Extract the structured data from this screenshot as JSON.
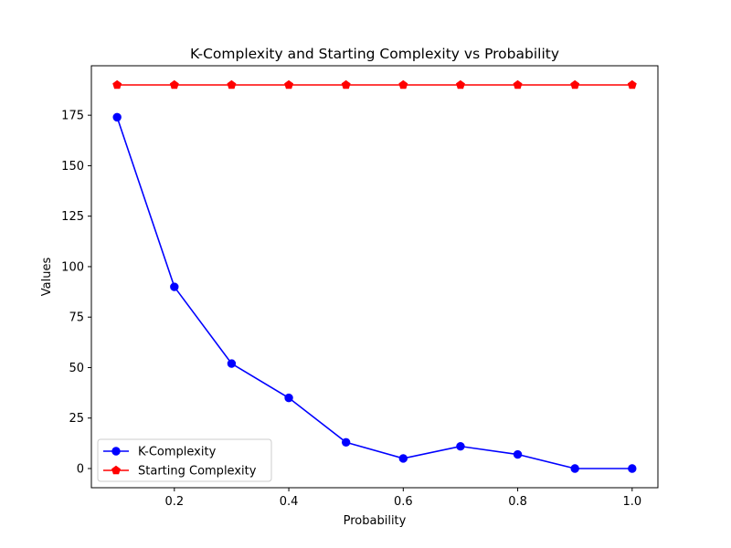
{
  "chart_data": {
    "type": "line",
    "title": "K-Complexity and Starting Complexity vs Probability",
    "xlabel": "Probability",
    "ylabel": "Values",
    "x": [
      0.1,
      0.2,
      0.3,
      0.4,
      0.5,
      0.6,
      0.7,
      0.8,
      0.9,
      1.0
    ],
    "xlim": [
      0.055,
      1.045
    ],
    "ylim": [
      -9.5,
      199.5
    ],
    "xticks": [
      0.2,
      0.4,
      0.6,
      0.8,
      1.0
    ],
    "xtick_labels": [
      "0.2",
      "0.4",
      "0.6",
      "0.8",
      "1.0"
    ],
    "yticks": [
      0,
      25,
      50,
      75,
      100,
      125,
      150,
      175
    ],
    "ytick_labels": [
      "0",
      "25",
      "50",
      "75",
      "100",
      "125",
      "150",
      "175"
    ],
    "grid": false,
    "legend_position": "lower-left",
    "series": [
      {
        "name": "K-Complexity",
        "color": "#0000ff",
        "marker": "circle",
        "values": [
          174,
          90,
          52,
          35,
          13,
          5,
          11,
          7,
          0,
          0
        ]
      },
      {
        "name": "Starting Complexity",
        "color": "#ff0000",
        "marker": "pentagon",
        "values": [
          190,
          190,
          190,
          190,
          190,
          190,
          190,
          190,
          190,
          190
        ]
      }
    ]
  }
}
